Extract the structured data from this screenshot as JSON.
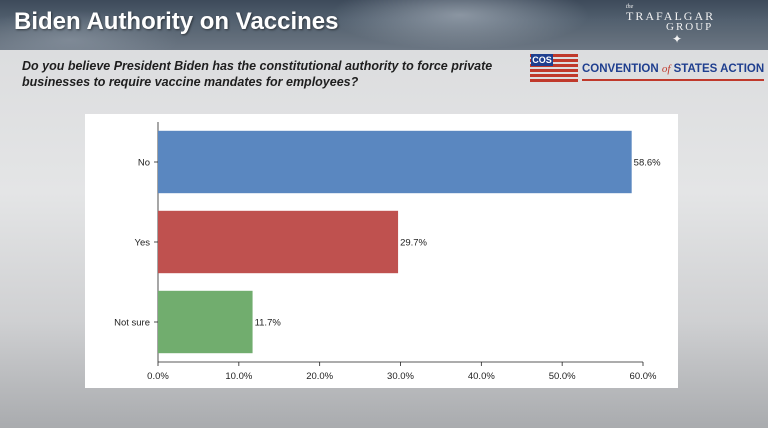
{
  "header": {
    "title": "Biden Authority on Vaccines",
    "logo": {
      "the": "the",
      "line1": "TRAFALGAR",
      "line2": "GROUP",
      "icon": "compass-star-icon"
    }
  },
  "question": "Do you believe President Biden has the constitutional authority to force private businesses to require vaccine mandates for employees?",
  "sponsor": {
    "abbr": "COS",
    "name_prefix": "CONVENTION",
    "name_of": "of",
    "name_suffix": "STATES ACTION",
    "colors": {
      "blue": "#1f3f8f",
      "red": "#c0392b"
    }
  },
  "chart_data": {
    "type": "bar",
    "orientation": "horizontal",
    "categories": [
      "No",
      "Yes",
      "Not sure"
    ],
    "values": [
      58.6,
      29.7,
      11.7
    ],
    "value_labels": [
      "58.6%",
      "29.7%",
      "11.7%"
    ],
    "colors": [
      "#5a87c0",
      "#bf514f",
      "#71ad6e"
    ],
    "xlim": [
      0,
      60
    ],
    "xticks": [
      0,
      10,
      20,
      30,
      40,
      50,
      60
    ],
    "xtick_labels": [
      "0.0%",
      "10.0%",
      "20.0%",
      "30.0%",
      "40.0%",
      "50.0%",
      "60.0%"
    ],
    "grid": false,
    "legend": "none"
  }
}
